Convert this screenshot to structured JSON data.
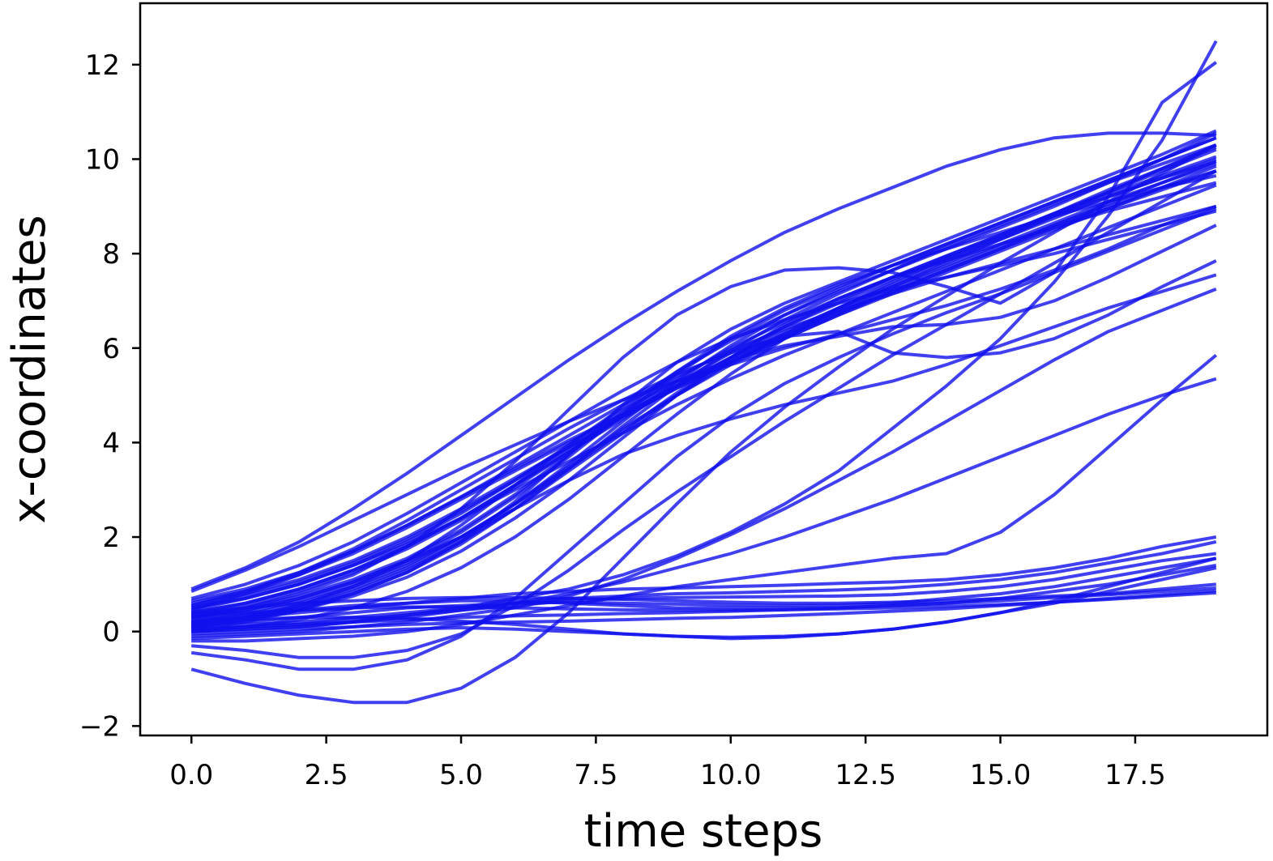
{
  "chart_data": {
    "type": "line",
    "xlabel": "time steps",
    "ylabel": "x-coordinates",
    "xlim": [
      -0.95,
      19.95
    ],
    "ylim": [
      -2.2,
      13.3
    ],
    "xticks": [
      0,
      2.5,
      5,
      7.5,
      10,
      12.5,
      15,
      17.5
    ],
    "xtick_labels": [
      "0.0",
      "2.5",
      "5.0",
      "7.5",
      "10.0",
      "12.5",
      "15.0",
      "17.5"
    ],
    "yticks": [
      -2,
      0,
      2,
      4,
      6,
      8,
      10,
      12
    ],
    "ytick_labels": [
      "−2",
      "0",
      "2",
      "4",
      "6",
      "8",
      "10",
      "12"
    ],
    "grid": false,
    "legend": "none",
    "line_color": "#1010ee",
    "x": [
      0,
      1,
      2,
      3,
      4,
      5,
      6,
      7,
      8,
      9,
      10,
      11,
      12,
      13,
      14,
      15,
      16,
      17,
      18,
      19
    ],
    "series": [
      {
        "values": [
          0.9,
          1.35,
          1.9,
          2.6,
          3.35,
          4.15,
          4.95,
          5.75,
          6.5,
          7.2,
          7.85,
          8.45,
          8.95,
          9.4,
          9.85,
          10.2,
          10.45,
          10.55,
          10.55,
          10.5
        ]
      },
      {
        "values": [
          0.0,
          0.05,
          0.1,
          0.2,
          0.35,
          0.5,
          0.7,
          0.9,
          1.2,
          1.6,
          2.1,
          2.7,
          3.4,
          4.3,
          5.2,
          6.2,
          7.4,
          8.8,
          10.4,
          12.5
        ]
      },
      {
        "values": [
          0.3,
          0.5,
          0.8,
          1.2,
          1.8,
          2.6,
          3.6,
          4.7,
          5.8,
          6.7,
          7.3,
          7.65,
          7.7,
          7.6,
          7.3,
          6.95,
          7.6,
          9.2,
          11.2,
          12.05
        ]
      },
      {
        "values": [
          0.4,
          0.6,
          0.9,
          1.3,
          1.8,
          2.4,
          3.1,
          3.8,
          4.5,
          5.2,
          5.8,
          6.3,
          6.8,
          7.3,
          7.8,
          8.3,
          8.8,
          9.3,
          9.8,
          10.3
        ]
      },
      {
        "values": [
          0.5,
          0.75,
          1.05,
          1.45,
          1.95,
          2.55,
          3.2,
          3.9,
          4.55,
          5.15,
          5.7,
          6.2,
          6.7,
          7.15,
          7.6,
          8.05,
          8.5,
          8.95,
          9.4,
          9.85
        ]
      },
      {
        "values": [
          0.2,
          0.35,
          0.6,
          0.95,
          1.4,
          2.0,
          2.7,
          3.5,
          4.3,
          5.0,
          5.65,
          6.2,
          6.7,
          7.2,
          7.65,
          8.1,
          8.6,
          9.05,
          9.5,
          9.95
        ]
      },
      {
        "values": [
          0.1,
          0.25,
          0.5,
          0.85,
          1.3,
          1.9,
          2.6,
          3.4,
          4.2,
          5.0,
          5.7,
          6.3,
          6.85,
          7.35,
          7.85,
          8.3,
          8.75,
          9.2,
          9.6,
          10.0
        ]
      },
      {
        "values": [
          0.6,
          0.85,
          1.2,
          1.65,
          2.2,
          2.8,
          3.4,
          4.0,
          4.6,
          5.2,
          5.75,
          6.25,
          6.75,
          7.25,
          7.7,
          8.15,
          8.6,
          9.0,
          9.4,
          9.75
        ]
      },
      {
        "values": [
          0.35,
          0.55,
          0.85,
          1.25,
          1.75,
          2.35,
          3.05,
          3.8,
          4.55,
          5.25,
          5.9,
          6.45,
          6.95,
          7.45,
          7.9,
          8.35,
          8.85,
          9.35,
          9.8,
          10.25
        ]
      },
      {
        "values": [
          0.15,
          0.3,
          0.55,
          0.9,
          1.35,
          1.95,
          2.7,
          3.55,
          4.45,
          5.3,
          6.05,
          6.7,
          7.25,
          7.75,
          8.2,
          8.65,
          9.1,
          9.55,
          10.0,
          10.45
        ]
      },
      {
        "values": [
          0.45,
          0.7,
          1.0,
          1.4,
          1.9,
          2.5,
          3.2,
          3.95,
          4.75,
          5.5,
          6.15,
          6.7,
          7.2,
          7.65,
          8.1,
          8.55,
          9.0,
          9.5,
          10.0,
          10.55
        ]
      },
      {
        "values": [
          0.25,
          0.4,
          0.65,
          1.0,
          1.45,
          2.0,
          2.7,
          3.45,
          4.25,
          5.05,
          5.8,
          6.45,
          7.0,
          7.5,
          7.95,
          8.4,
          8.85,
          9.3,
          9.75,
          10.2
        ]
      },
      {
        "values": [
          0.55,
          0.8,
          1.1,
          1.5,
          2.0,
          2.6,
          3.25,
          3.9,
          4.55,
          5.2,
          5.8,
          6.35,
          6.85,
          7.3,
          7.75,
          8.2,
          8.65,
          9.1,
          9.5,
          9.9
        ]
      },
      {
        "values": [
          0.05,
          0.2,
          0.45,
          0.8,
          1.25,
          1.85,
          2.6,
          3.45,
          4.35,
          5.2,
          5.95,
          6.6,
          7.15,
          7.65,
          8.15,
          8.6,
          9.05,
          9.5,
          9.9,
          10.3
        ]
      },
      {
        "values": [
          0.3,
          0.45,
          0.7,
          1.05,
          1.5,
          2.1,
          2.85,
          3.7,
          4.6,
          5.45,
          6.2,
          6.8,
          7.3,
          7.75,
          8.2,
          8.65,
          9.1,
          9.55,
          10.0,
          10.45
        ]
      },
      {
        "values": [
          0.4,
          0.6,
          0.9,
          1.3,
          1.8,
          2.4,
          3.1,
          3.85,
          4.6,
          5.35,
          6.0,
          6.55,
          7.05,
          7.5,
          7.95,
          8.4,
          8.85,
          9.25,
          9.65,
          10.05
        ]
      },
      {
        "values": [
          0.2,
          0.3,
          0.5,
          0.8,
          1.25,
          1.9,
          2.75,
          3.75,
          4.8,
          5.7,
          6.4,
          6.95,
          7.4,
          7.85,
          8.3,
          8.75,
          9.2,
          9.65,
          10.1,
          10.6
        ]
      },
      {
        "values": [
          0.5,
          0.7,
          1.0,
          1.4,
          1.85,
          2.4,
          3.0,
          3.6,
          4.2,
          4.8,
          5.35,
          5.85,
          6.3,
          6.75,
          7.2,
          7.65,
          8.1,
          8.55,
          9.0,
          9.45
        ]
      },
      {
        "values": [
          0.65,
          0.9,
          1.25,
          1.7,
          2.25,
          2.85,
          3.5,
          4.15,
          4.8,
          5.4,
          5.95,
          6.4,
          6.8,
          7.15,
          7.5,
          7.8,
          8.1,
          8.4,
          8.7,
          9.0
        ]
      },
      {
        "values": [
          0.0,
          0.1,
          0.25,
          0.5,
          0.85,
          1.35,
          2.0,
          2.8,
          3.7,
          4.6,
          5.45,
          6.2,
          6.85,
          7.4,
          7.9,
          8.35,
          8.8,
          9.2,
          9.6,
          9.95
        ]
      },
      {
        "values": [
          0.35,
          0.5,
          0.75,
          1.1,
          1.55,
          2.15,
          2.9,
          3.75,
          4.65,
          5.5,
          6.25,
          6.85,
          7.35,
          7.75,
          8.1,
          8.45,
          8.8,
          9.1,
          9.4,
          9.65
        ]
      },
      {
        "values": [
          0.7,
          1.0,
          1.4,
          1.9,
          2.5,
          3.15,
          3.8,
          4.45,
          5.1,
          5.7,
          6.2,
          6.6,
          6.95,
          7.25,
          7.5,
          7.75,
          8.0,
          8.3,
          8.6,
          8.9
        ]
      },
      {
        "values": [
          0.1,
          0.25,
          0.45,
          0.75,
          1.15,
          1.7,
          2.4,
          3.2,
          4.1,
          5.0,
          5.8,
          6.5,
          7.05,
          7.5,
          7.85,
          8.2,
          8.55,
          8.9,
          9.2,
          9.5
        ]
      },
      {
        "values": [
          0.85,
          1.3,
          1.8,
          2.35,
          2.9,
          3.45,
          3.95,
          4.45,
          4.9,
          5.3,
          5.65,
          6.0,
          6.3,
          6.6,
          6.9,
          7.25,
          7.65,
          8.1,
          8.6,
          9.0
        ]
      },
      {
        "values": [
          -0.3,
          -0.4,
          -0.55,
          -0.55,
          -0.4,
          -0.05,
          0.55,
          1.3,
          2.15,
          2.95,
          3.7,
          4.45,
          5.15,
          5.85,
          6.5,
          7.15,
          7.8,
          8.45,
          9.1,
          9.75
        ]
      },
      {
        "values": [
          -0.8,
          -1.1,
          -1.35,
          -1.5,
          -1.5,
          -1.2,
          -0.55,
          0.4,
          1.55,
          2.7,
          3.8,
          4.75,
          5.6,
          6.4,
          7.1,
          7.8,
          8.45,
          9.1,
          9.7,
          10.3
        ]
      },
      {
        "values": [
          -0.45,
          -0.6,
          -0.8,
          -0.8,
          -0.6,
          -0.1,
          0.7,
          1.7,
          2.7,
          3.7,
          4.55,
          5.25,
          5.8,
          6.3,
          6.75,
          7.15,
          7.6,
          8.05,
          8.5,
          8.95
        ]
      },
      {
        "values": [
          0.15,
          0.3,
          0.55,
          0.95,
          1.5,
          2.25,
          3.1,
          3.95,
          4.7,
          5.3,
          5.75,
          6.05,
          6.25,
          6.45,
          6.5,
          6.65,
          7.0,
          7.5,
          8.05,
          8.6
        ]
      },
      {
        "values": [
          0.55,
          0.85,
          1.25,
          1.75,
          2.35,
          3.0,
          3.65,
          4.3,
          4.9,
          5.45,
          5.9,
          6.25,
          6.35,
          5.9,
          5.8,
          5.9,
          6.2,
          6.7,
          7.3,
          7.85
        ]
      },
      {
        "values": [
          0.45,
          0.8,
          1.2,
          1.7,
          2.25,
          2.85,
          3.45,
          4.05,
          4.6,
          5.15,
          5.7,
          6.25,
          6.75,
          7.2,
          7.65,
          8.1,
          8.55,
          8.95,
          9.35,
          9.75
        ]
      },
      {
        "values": [
          0.3,
          0.45,
          0.7,
          1.05,
          1.5,
          2.0,
          2.6,
          3.2,
          3.75,
          4.15,
          4.5,
          4.8,
          5.05,
          5.3,
          5.65,
          6.05,
          6.45,
          6.85,
          7.2,
          7.55
        ]
      },
      {
        "values": [
          -0.1,
          -0.05,
          0.0,
          0.1,
          0.2,
          0.35,
          0.5,
          0.75,
          1.1,
          1.55,
          2.05,
          2.6,
          3.2,
          3.8,
          4.45,
          5.1,
          5.75,
          6.35,
          6.8,
          7.25
        ]
      },
      {
        "values": [
          0.0,
          0.05,
          0.1,
          0.2,
          0.3,
          0.45,
          0.6,
          0.8,
          1.05,
          1.35,
          1.65,
          2.0,
          2.4,
          2.8,
          3.25,
          3.7,
          4.15,
          4.6,
          5.0,
          5.35
        ]
      },
      {
        "values": [
          -0.2,
          -0.2,
          -0.15,
          -0.1,
          0.0,
          0.15,
          0.35,
          0.55,
          0.75,
          0.95,
          1.1,
          1.25,
          1.4,
          1.55,
          1.65,
          2.1,
          2.9,
          3.9,
          4.9,
          5.85
        ]
      },
      {
        "values": [
          0.2,
          0.3,
          0.4,
          0.5,
          0.6,
          0.7,
          0.8,
          0.85,
          0.9,
          0.92,
          0.95,
          0.98,
          1.02,
          1.05,
          1.1,
          1.2,
          1.35,
          1.55,
          1.8,
          2.0
        ]
      },
      {
        "values": [
          0.1,
          0.15,
          0.2,
          0.3,
          0.4,
          0.5,
          0.6,
          0.7,
          0.75,
          0.8,
          0.82,
          0.85,
          0.88,
          0.92,
          1.0,
          1.1,
          1.25,
          1.45,
          1.65,
          1.9
        ]
      },
      {
        "values": [
          0.05,
          0.1,
          0.15,
          0.25,
          0.35,
          0.45,
          0.55,
          0.65,
          0.7,
          0.72,
          0.73,
          0.74,
          0.75,
          0.78,
          0.85,
          0.95,
          1.1,
          1.3,
          1.5,
          1.65
        ]
      },
      {
        "values": [
          0.15,
          0.2,
          0.3,
          0.4,
          0.5,
          0.55,
          0.6,
          0.62,
          0.6,
          0.58,
          0.56,
          0.55,
          0.56,
          0.6,
          0.7,
          0.8,
          0.95,
          1.15,
          1.35,
          1.55
        ]
      },
      {
        "values": [
          0.25,
          0.35,
          0.45,
          0.55,
          0.6,
          0.65,
          0.65,
          0.6,
          0.55,
          0.5,
          0.5,
          0.5,
          0.5,
          0.55,
          0.6,
          0.7,
          0.85,
          1.0,
          1.2,
          1.4
        ]
      },
      {
        "values": [
          0.4,
          0.5,
          0.6,
          0.65,
          0.7,
          0.72,
          0.72,
          0.7,
          0.68,
          0.65,
          0.62,
          0.6,
          0.6,
          0.62,
          0.65,
          0.7,
          0.75,
          0.8,
          0.9,
          1.0
        ]
      },
      {
        "values": [
          0.35,
          0.4,
          0.45,
          0.5,
          0.52,
          0.52,
          0.5,
          0.48,
          0.46,
          0.45,
          0.45,
          0.46,
          0.48,
          0.5,
          0.53,
          0.57,
          0.62,
          0.68,
          0.75,
          0.82
        ]
      },
      {
        "values": [
          0.05,
          0.1,
          0.15,
          0.2,
          0.25,
          0.3,
          0.33,
          0.35,
          0.38,
          0.4,
          0.43,
          0.46,
          0.5,
          0.55,
          0.6,
          0.65,
          0.72,
          0.78,
          0.85,
          0.92
        ]
      },
      {
        "values": [
          -0.05,
          0.0,
          0.05,
          0.1,
          0.15,
          0.18,
          0.2,
          0.22,
          0.25,
          0.28,
          0.3,
          0.34,
          0.38,
          0.43,
          0.48,
          0.55,
          0.62,
          0.7,
          0.78,
          0.86
        ]
      },
      {
        "values": [
          -0.15,
          -0.1,
          -0.05,
          0.0,
          0.05,
          0.08,
          0.05,
          0.0,
          -0.05,
          -0.1,
          -0.15,
          -0.12,
          -0.05,
          0.05,
          0.2,
          0.4,
          0.65,
          0.95,
          1.25,
          1.55
        ]
      },
      {
        "values": [
          0.2,
          0.25,
          0.3,
          0.3,
          0.28,
          0.22,
          0.15,
          0.05,
          -0.05,
          -0.1,
          -0.12,
          -0.1,
          -0.05,
          0.05,
          0.2,
          0.4,
          0.6,
          0.85,
          1.1,
          1.35
        ]
      }
    ]
  }
}
